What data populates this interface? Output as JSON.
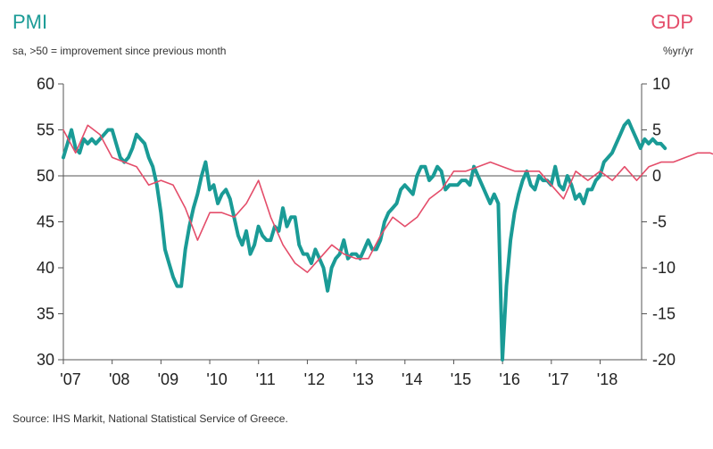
{
  "chart_data": {
    "type": "line",
    "title": "PMI",
    "subtitle": "sa, >50 = improvement since previous month",
    "right_title": "GDP",
    "right_subtitle": "%yr/yr",
    "source": "Source: IHS Markit, National Statistical Service of Greece.",
    "x_tick_labels": [
      "'07",
      "'08",
      "'09",
      "'10",
      "'11",
      "'12",
      "'13",
      "'14",
      "'15",
      "'16",
      "'17",
      "'18"
    ],
    "y_left": {
      "label": "PMI",
      "ylim": [
        30,
        60
      ],
      "ticks": [
        60,
        55,
        50,
        45,
        40,
        35,
        30
      ]
    },
    "y_right": {
      "label": "GDP %yr/yr",
      "ylim": [
        -20,
        10
      ],
      "ticks": [
        10,
        5,
        0,
        -5,
        -10,
        -15,
        -20
      ]
    },
    "reference_line": {
      "axis": "left",
      "value": 50
    },
    "colors": {
      "pmi": "#1a9b96",
      "gdp": "#e44d6a",
      "axis": "#555555"
    },
    "series": [
      {
        "name": "PMI",
        "axis": "left",
        "x_start": 2007.0,
        "step": 0.0833,
        "values": [
          52,
          53.5,
          55,
          53,
          52.5,
          54,
          53.5,
          54,
          53.5,
          54,
          54.5,
          55,
          55,
          53.5,
          52,
          51.5,
          52,
          53,
          54.5,
          54,
          53.5,
          52,
          51,
          49,
          46,
          42,
          40.5,
          39,
          38,
          38,
          42,
          44.5,
          46.5,
          48,
          50,
          51.5,
          48.5,
          49,
          47,
          48,
          48.5,
          47.5,
          45.5,
          43.5,
          42.5,
          44,
          41.5,
          42.5,
          44.5,
          43.5,
          43,
          43,
          44.5,
          44,
          46.5,
          44.5,
          45.5,
          45.5,
          42.5,
          41.5,
          41.5,
          40.5,
          42,
          41,
          40,
          37.5,
          40,
          41,
          41.5,
          43,
          41,
          41.5,
          41.5,
          41,
          42,
          43,
          42,
          42,
          43,
          45,
          46,
          46.5,
          47,
          48.5,
          49,
          48.5,
          48,
          50,
          51,
          51,
          49.5,
          50,
          51,
          50.5,
          48.5,
          49,
          49,
          49,
          49.5,
          49.5,
          49,
          51,
          50,
          49,
          48,
          47,
          48,
          47,
          30,
          38,
          43,
          46,
          48,
          49.5,
          50.5,
          49,
          48.5,
          50,
          49.5,
          49.5,
          49,
          51,
          49,
          48.5,
          50,
          49,
          47.5,
          48,
          47,
          48.5,
          48.5,
          49.5,
          50,
          51.5,
          52,
          52.5,
          53.5,
          54.5,
          55.5,
          56,
          55,
          54,
          53,
          54,
          53.5,
          54,
          53.5,
          53.5,
          53
        ]
      },
      {
        "name": "GDP",
        "axis": "right",
        "x_start": 2007.0,
        "step": 0.25,
        "values": [
          5,
          2.5,
          5.5,
          4.5,
          2,
          1.5,
          1,
          -1,
          -0.5,
          -1,
          -3.5,
          -7,
          -4,
          -4,
          -4.5,
          -3,
          -0.5,
          -4.5,
          -7.5,
          -9.5,
          -10.5,
          -9,
          -7.5,
          -8.5,
          -9,
          -9,
          -6.5,
          -4.5,
          -5.5,
          -4.5,
          -2.5,
          -1.5,
          0.5,
          0.5,
          1,
          1.5,
          1,
          0.5,
          0.5,
          0.5,
          -1,
          -2.5,
          0.5,
          -0.5,
          0.5,
          -0.5,
          1,
          -0.5,
          1,
          1.5,
          1.5,
          2,
          2.5,
          2.5,
          2
        ]
      }
    ]
  }
}
